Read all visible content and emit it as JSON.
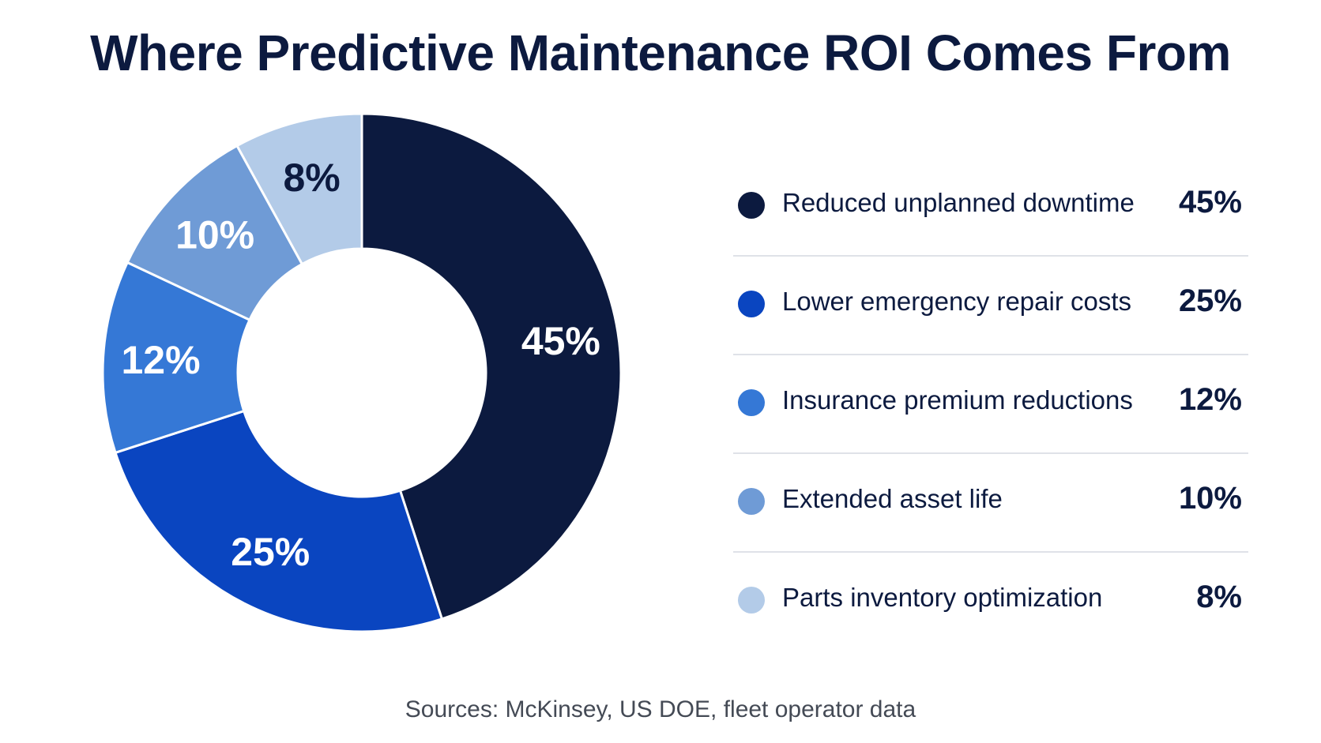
{
  "chart_data": {
    "type": "pie",
    "title": "Where Predictive Maintenance ROI Comes From",
    "source": "Sources: McKinsey, US DOE, fleet operator data",
    "donut": true,
    "legend_position": "right",
    "slices": [
      {
        "label": "Reduced unplanned downtime",
        "value": 45,
        "display": "45%",
        "color": "#0c1a3f",
        "text_color": "#ffffff"
      },
      {
        "label": "Lower emergency repair costs",
        "value": 25,
        "display": "25%",
        "color": "#0a45c0",
        "text_color": "#ffffff"
      },
      {
        "label": "Insurance premium reductions",
        "value": 12,
        "display": "12%",
        "color": "#3578d6",
        "text_color": "#ffffff"
      },
      {
        "label": "Extended asset life",
        "value": 10,
        "display": "10%",
        "color": "#6f9bd6",
        "text_color": "#ffffff"
      },
      {
        "label": "Parts inventory optimization",
        "value": 8,
        "display": "8%",
        "color": "#b3cbe8",
        "text_color": "#0c1a3f"
      }
    ]
  }
}
